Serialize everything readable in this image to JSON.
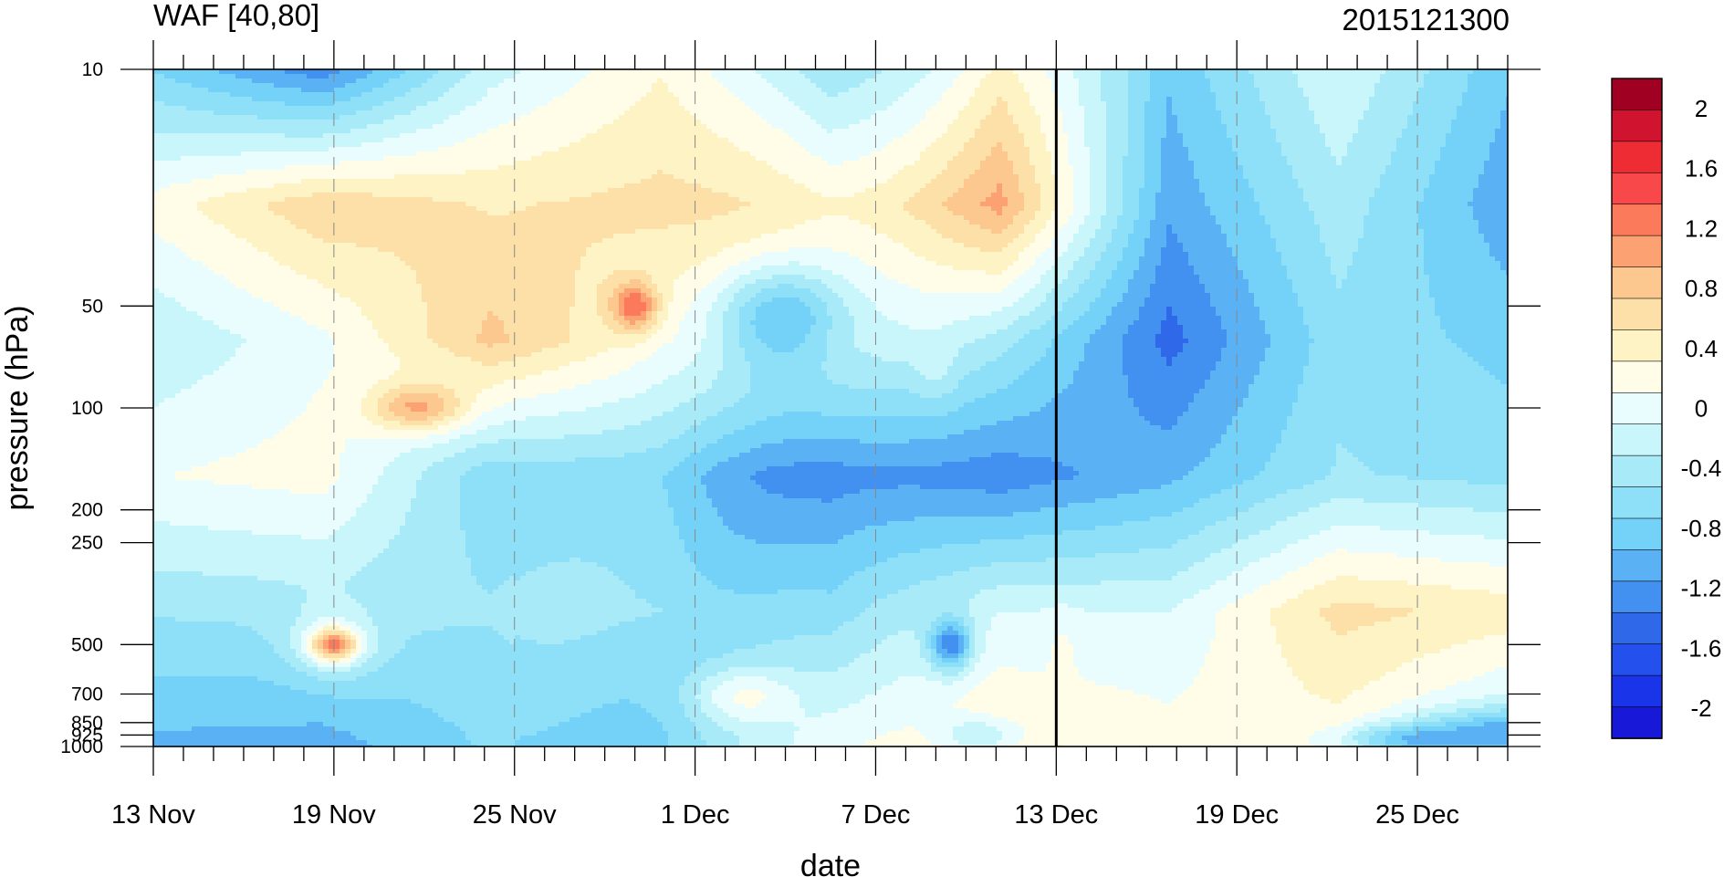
{
  "chart_data": {
    "type": "contour",
    "title": "WAF [40,80]",
    "right_title": "2015121300",
    "xlabel": "date",
    "ylabel": "pressure (hPa)",
    "x_ticks": [
      "13 Nov",
      "19 Nov",
      "25 Nov",
      "1 Dec",
      "7 Dec",
      "13 Dec",
      "19 Dec",
      "25 Dec"
    ],
    "x_tick_days": [
      0,
      6,
      12,
      18,
      24,
      30,
      36,
      42
    ],
    "x_range_days": [
      0,
      45
    ],
    "marked_day_line": 30,
    "y_ticks": [
      "10",
      "50",
      "100",
      "200",
      "250",
      "500",
      "700",
      "850",
      "925",
      "1000"
    ],
    "y_tick_values": [
      10,
      50,
      100,
      200,
      250,
      500,
      700,
      850,
      925,
      1000
    ],
    "y_range": [
      10,
      1000
    ],
    "y_scale": "log",
    "y_inverted": true,
    "colorbar": {
      "labels": [
        "2",
        "1.6",
        "1.2",
        "0.8",
        "0.4",
        "0",
        "-0.4",
        "-0.8",
        "-1.2",
        "-1.6",
        "-2"
      ],
      "label_values": [
        2,
        1.6,
        1.2,
        0.8,
        0.4,
        0,
        -0.4,
        -0.8,
        -1.2,
        -1.6,
        -2
      ],
      "range": [
        -2.2,
        2.2
      ],
      "colors": [
        "#a00022",
        "#d01430",
        "#ee2c34",
        "#f8484a",
        "#fc7a5c",
        "#fca272",
        "#fdc890",
        "#fde0a8",
        "#fef3c4",
        "#fffde8",
        "#eafdfe",
        "#c8f6fb",
        "#a8eaf8",
        "#8ee0f8",
        "#74d2f8",
        "#5ab2f5",
        "#4290f0",
        "#3068ea",
        "#2450ee",
        "#1a34ea",
        "#1818d8"
      ]
    },
    "grid": {
      "days": [
        0,
        1.3,
        2.6,
        3.9,
        5.2,
        6.5,
        7.8,
        9.1,
        10.4,
        11.7,
        13.0,
        14.3,
        15.6,
        16.9,
        18.2,
        19.5,
        20.8,
        22.1,
        23.4,
        24.7,
        26.0,
        27.3,
        28.6,
        29.9,
        31.2,
        32.5,
        33.8,
        35.1,
        36.4,
        37.7,
        39.0,
        40.3,
        41.6,
        42.9,
        45
      ],
      "levels_hpa": [
        10,
        50,
        100,
        200,
        250,
        500,
        700,
        850,
        925,
        1000
      ]
    }
  }
}
